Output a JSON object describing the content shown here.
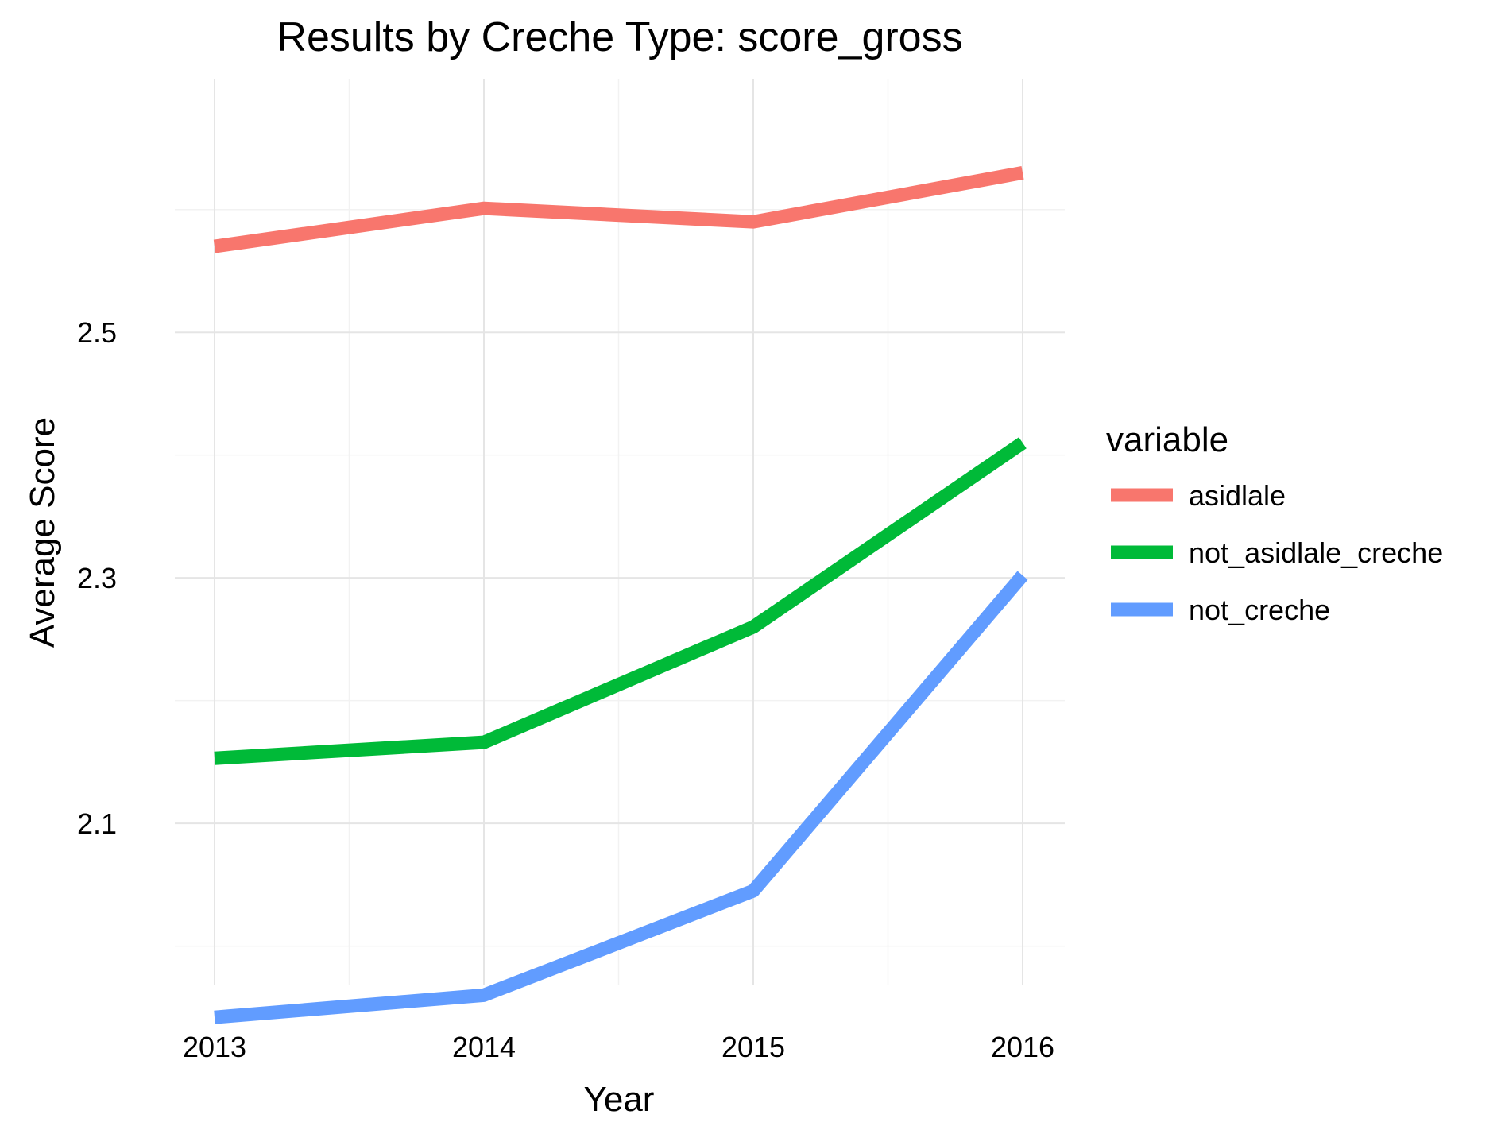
{
  "chart_data": {
    "type": "line",
    "title": "Results by Creche Type: score_gross",
    "xlabel": "Year",
    "ylabel": "Average Score",
    "x": [
      2013,
      2014,
      2015,
      2016
    ],
    "x_ticks": [
      "2013",
      "2014",
      "2015",
      "2016"
    ],
    "y_ticks": [
      2.1,
      2.3,
      2.5
    ],
    "y_tick_labels": [
      "2.1",
      "2.3",
      "2.5"
    ],
    "ylim": [
      1.968,
      2.706
    ],
    "grid": true,
    "legend": {
      "title": "variable",
      "position": "right"
    },
    "series": [
      {
        "name": "asidlale",
        "color": "#F8766D",
        "values": [
          2.57,
          2.601,
          2.59,
          2.63
        ]
      },
      {
        "name": "not_asidlale_creche",
        "color": "#00BA38",
        "values": [
          2.153,
          2.166,
          2.26,
          2.41
        ]
      },
      {
        "name": "not_creche",
        "color": "#619CFF",
        "values": [
          1.942,
          1.96,
          2.045,
          2.302
        ]
      }
    ]
  }
}
